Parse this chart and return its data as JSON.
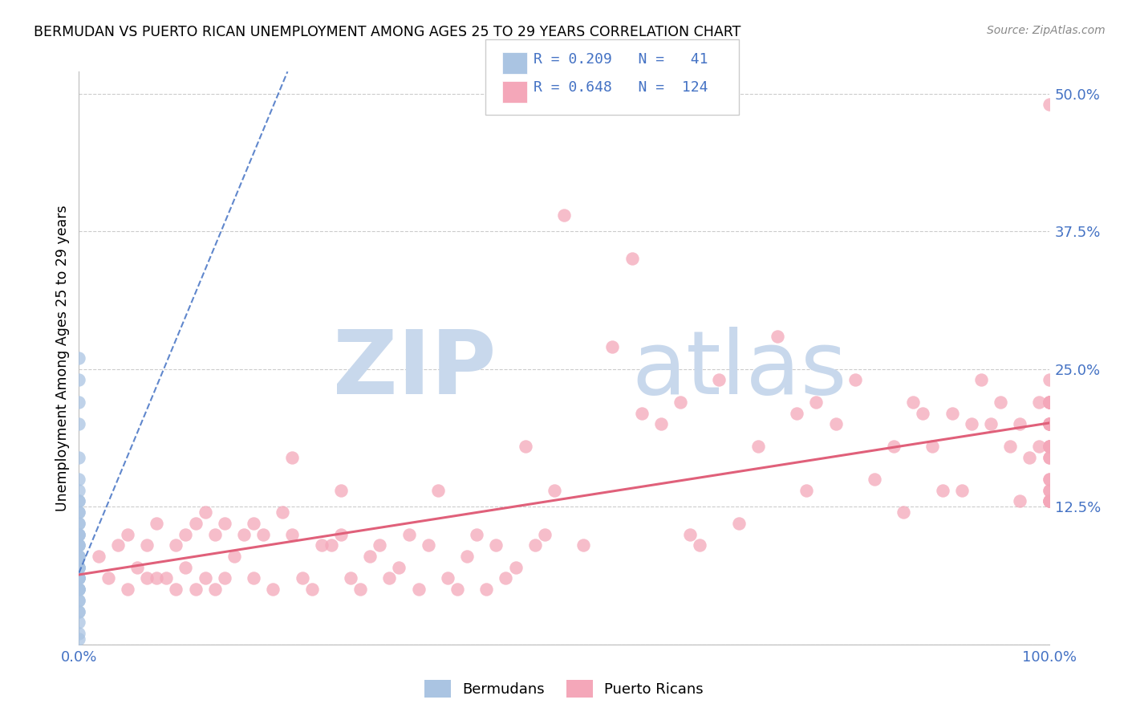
{
  "title": "BERMUDAN VS PUERTO RICAN UNEMPLOYMENT AMONG AGES 25 TO 29 YEARS CORRELATION CHART",
  "source": "Source: ZipAtlas.com",
  "ylabel": "Unemployment Among Ages 25 to 29 years",
  "xlim": [
    0.0,
    1.0
  ],
  "ylim": [
    0.0,
    0.52
  ],
  "x_ticks": [
    0.0,
    1.0
  ],
  "x_tick_labels": [
    "0.0%",
    "100.0%"
  ],
  "y_ticks": [
    0.0,
    0.125,
    0.25,
    0.375,
    0.5
  ],
  "y_tick_labels": [
    "",
    "12.5%",
    "25.0%",
    "37.5%",
    "50.0%"
  ],
  "bermuda_R": 0.209,
  "bermuda_N": 41,
  "puertorico_R": 0.648,
  "puertorico_N": 124,
  "bermuda_color": "#aac4e2",
  "bermuda_edge_color": "#aac4e2",
  "bermuda_line_color": "#4472c4",
  "puertorico_color": "#f4a7b9",
  "puertorico_edge_color": "#f4a7b9",
  "puertorico_line_color": "#e0607a",
  "tick_color": "#4472c4",
  "grid_color": "#cccccc",
  "background_color": "#ffffff",
  "bermuda_x": [
    0.0,
    0.0,
    0.0,
    0.0,
    0.0,
    0.0,
    0.0,
    0.0,
    0.0,
    0.0,
    0.0,
    0.0,
    0.0,
    0.0,
    0.0,
    0.0,
    0.0,
    0.0,
    0.0,
    0.0,
    0.0,
    0.0,
    0.0,
    0.0,
    0.0,
    0.0,
    0.0,
    0.0,
    0.0,
    0.0,
    0.0,
    0.0,
    0.0,
    0.0,
    0.0,
    0.0,
    0.0,
    0.0,
    0.0,
    0.0,
    0.0
  ],
  "bermuda_y": [
    0.26,
    0.24,
    0.22,
    0.2,
    0.17,
    0.15,
    0.14,
    0.13,
    0.13,
    0.12,
    0.12,
    0.11,
    0.11,
    0.1,
    0.1,
    0.1,
    0.09,
    0.09,
    0.09,
    0.08,
    0.08,
    0.08,
    0.07,
    0.07,
    0.07,
    0.07,
    0.06,
    0.06,
    0.06,
    0.06,
    0.05,
    0.05,
    0.05,
    0.05,
    0.04,
    0.04,
    0.03,
    0.03,
    0.02,
    0.01,
    0.005
  ],
  "puertorico_x": [
    0.02,
    0.03,
    0.04,
    0.05,
    0.05,
    0.06,
    0.07,
    0.07,
    0.08,
    0.08,
    0.09,
    0.1,
    0.1,
    0.11,
    0.11,
    0.12,
    0.12,
    0.13,
    0.13,
    0.14,
    0.14,
    0.15,
    0.15,
    0.16,
    0.17,
    0.18,
    0.18,
    0.19,
    0.2,
    0.21,
    0.22,
    0.22,
    0.23,
    0.24,
    0.25,
    0.26,
    0.27,
    0.27,
    0.28,
    0.29,
    0.3,
    0.31,
    0.32,
    0.33,
    0.34,
    0.35,
    0.36,
    0.37,
    0.38,
    0.39,
    0.4,
    0.41,
    0.42,
    0.43,
    0.44,
    0.45,
    0.46,
    0.47,
    0.48,
    0.49,
    0.5,
    0.52,
    0.55,
    0.57,
    0.58,
    0.6,
    0.62,
    0.63,
    0.64,
    0.66,
    0.68,
    0.7,
    0.72,
    0.74,
    0.75,
    0.76,
    0.78,
    0.8,
    0.82,
    0.84,
    0.85,
    0.86,
    0.87,
    0.88,
    0.89,
    0.9,
    0.91,
    0.92,
    0.93,
    0.94,
    0.95,
    0.96,
    0.97,
    0.97,
    0.98,
    0.99,
    0.99,
    1.0,
    1.0,
    1.0,
    1.0,
    1.0,
    1.0,
    1.0,
    1.0,
    1.0,
    1.0,
    1.0,
    1.0,
    1.0,
    1.0,
    1.0,
    1.0,
    1.0,
    1.0,
    1.0,
    1.0,
    1.0,
    1.0,
    1.0,
    1.0,
    1.0,
    1.0,
    1.0
  ],
  "puertorico_y": [
    0.08,
    0.06,
    0.09,
    0.05,
    0.1,
    0.07,
    0.06,
    0.09,
    0.06,
    0.11,
    0.06,
    0.05,
    0.09,
    0.07,
    0.1,
    0.05,
    0.11,
    0.06,
    0.12,
    0.05,
    0.1,
    0.06,
    0.11,
    0.08,
    0.1,
    0.06,
    0.11,
    0.1,
    0.05,
    0.12,
    0.1,
    0.17,
    0.06,
    0.05,
    0.09,
    0.09,
    0.1,
    0.14,
    0.06,
    0.05,
    0.08,
    0.09,
    0.06,
    0.07,
    0.1,
    0.05,
    0.09,
    0.14,
    0.06,
    0.05,
    0.08,
    0.1,
    0.05,
    0.09,
    0.06,
    0.07,
    0.18,
    0.09,
    0.1,
    0.14,
    0.39,
    0.09,
    0.27,
    0.35,
    0.21,
    0.2,
    0.22,
    0.1,
    0.09,
    0.24,
    0.11,
    0.18,
    0.28,
    0.21,
    0.14,
    0.22,
    0.2,
    0.24,
    0.15,
    0.18,
    0.12,
    0.22,
    0.21,
    0.18,
    0.14,
    0.21,
    0.14,
    0.2,
    0.24,
    0.2,
    0.22,
    0.18,
    0.13,
    0.2,
    0.17,
    0.22,
    0.18,
    0.22,
    0.2,
    0.13,
    0.49,
    0.15,
    0.2,
    0.18,
    0.22,
    0.2,
    0.13,
    0.17,
    0.22,
    0.13,
    0.14,
    0.18,
    0.2,
    0.22,
    0.18,
    0.14,
    0.24,
    0.2,
    0.13,
    0.15,
    0.17,
    0.22,
    0.18,
    0.2
  ],
  "bm_line_x0": 0.0,
  "bm_line_y0": 0.065,
  "bm_line_x1": 0.215,
  "bm_line_y1": 0.52,
  "watermark_zip_color": "#c8d8ec",
  "watermark_atlas_color": "#c8d8ec"
}
